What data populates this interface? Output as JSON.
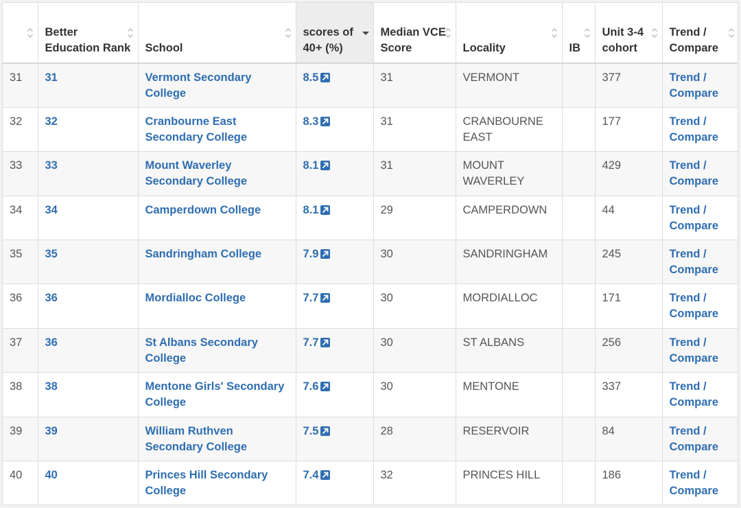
{
  "headers": {
    "index": "",
    "rank": "Better Education Rank",
    "school": "School",
    "score": "scores of 40+ (%)",
    "median": "Median VCE Score",
    "locality": "Locality",
    "ib": "IB",
    "cohort": "Unit 3-4 cohort",
    "trend": "Trend / Compare"
  },
  "colors": {
    "link": "#2f6eb1",
    "sorted_header": "#ededed"
  },
  "rows": [
    {
      "index": "31",
      "rank": "31",
      "school": "Vermont Secondary College",
      "score": "8.5",
      "median": "31",
      "locality": "VERMONT",
      "ib": "",
      "cohort": "377",
      "trend": "Trend / Compare"
    },
    {
      "index": "32",
      "rank": "32",
      "school": "Cranbourne East Secondary College",
      "score": "8.3",
      "median": "31",
      "locality": "CRANBOURNE EAST",
      "ib": "",
      "cohort": "177",
      "trend": "Trend / Compare"
    },
    {
      "index": "33",
      "rank": "33",
      "school": "Mount Waverley Secondary College",
      "score": "8.1",
      "median": "31",
      "locality": "MOUNT WAVERLEY",
      "ib": "",
      "cohort": "429",
      "trend": "Trend / Compare"
    },
    {
      "index": "34",
      "rank": "34",
      "school": "Camperdown College",
      "score": "8.1",
      "median": "29",
      "locality": "CAMPERDOWN",
      "ib": "",
      "cohort": "44",
      "trend": "Trend / Compare"
    },
    {
      "index": "35",
      "rank": "35",
      "school": "Sandringham College",
      "score": "7.9",
      "median": "30",
      "locality": "SANDRINGHAM",
      "ib": "",
      "cohort": "245",
      "trend": "Trend / Compare"
    },
    {
      "index": "36",
      "rank": "36",
      "school": "Mordialloc College",
      "score": "7.7",
      "median": "30",
      "locality": "MORDIALLOC",
      "ib": "",
      "cohort": "171",
      "trend": "Trend / Compare"
    },
    {
      "index": "37",
      "rank": "36",
      "school": "St Albans Secondary College",
      "score": "7.7",
      "median": "30",
      "locality": "ST ALBANS",
      "ib": "",
      "cohort": "256",
      "trend": "Trend / Compare"
    },
    {
      "index": "38",
      "rank": "38",
      "school": "Mentone Girls' Secondary College",
      "score": "7.6",
      "median": "30",
      "locality": "MENTONE",
      "ib": "",
      "cohort": "337",
      "trend": "Trend / Compare"
    },
    {
      "index": "39",
      "rank": "39",
      "school": "William Ruthven Secondary College",
      "score": "7.5",
      "median": "28",
      "locality": "RESERVOIR",
      "ib": "",
      "cohort": "84",
      "trend": "Trend / Compare"
    },
    {
      "index": "40",
      "rank": "40",
      "school": "Princes Hill Secondary College",
      "score": "7.4",
      "median": "32",
      "locality": "PRINCES HILL",
      "ib": "",
      "cohort": "186",
      "trend": "Trend / Compare"
    }
  ]
}
